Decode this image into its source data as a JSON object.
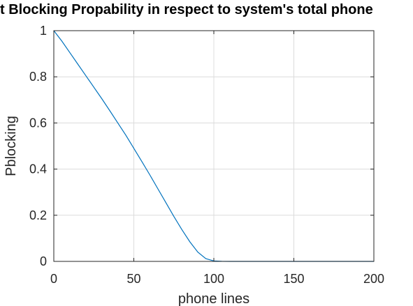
{
  "chart_data": {
    "type": "line",
    "title": "t Blocking Propability in respect to system's total phone",
    "xlabel": "phone lines",
    "ylabel": "Pblocking",
    "xlim": [
      0,
      200
    ],
    "ylim": [
      0,
      1
    ],
    "xticks": [
      0,
      50,
      100,
      150,
      200
    ],
    "xtick_labels": [
      "0",
      "50",
      "100",
      "150",
      "200"
    ],
    "yticks": [
      0,
      0.2,
      0.4,
      0.6,
      0.8,
      1
    ],
    "ytick_labels": [
      "0",
      "0.2",
      "0.4",
      "0.6",
      "0.8",
      "1"
    ],
    "grid": true,
    "series": [
      {
        "color": "#0072bd",
        "x": [
          0,
          5,
          10,
          15,
          20,
          25,
          30,
          35,
          40,
          45,
          50,
          55,
          60,
          65,
          70,
          75,
          80,
          85,
          90,
          95,
          100,
          105,
          110,
          120,
          130,
          140,
          150,
          160,
          170,
          180,
          190,
          200
        ],
        "y": [
          1.0,
          0.955,
          0.905,
          0.855,
          0.805,
          0.755,
          0.705,
          0.653,
          0.6,
          0.547,
          0.49,
          0.433,
          0.375,
          0.315,
          0.255,
          0.195,
          0.138,
          0.085,
          0.04,
          0.012,
          0.002,
          0.0003,
          0.0,
          0.0,
          0.0,
          0.0,
          0.0,
          0.0,
          0.0,
          0.0,
          0.0,
          0.0
        ]
      }
    ]
  }
}
